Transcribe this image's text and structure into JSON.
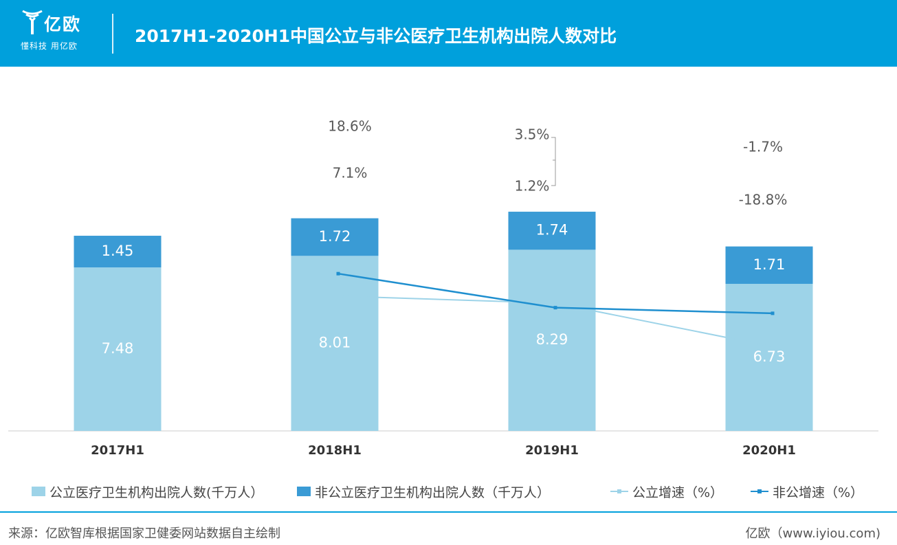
{
  "header": {
    "logo_text": "亿欧",
    "logo_slogan": "懂科技 用亿欧",
    "title": "2017H1-2020H1中国公立与非公医疗卫生机构出院人数对比"
  },
  "colors": {
    "header_bg": "#00a0dc",
    "public_bar": "#9dd3e8",
    "private_bar": "#3a9bd5",
    "public_line": "#9dd3e8",
    "private_line": "#1f8fcf"
  },
  "chart_data": {
    "type": "bar",
    "stacked": true,
    "categories": [
      "2017H1",
      "2018H1",
      "2019H1",
      "2020H1"
    ],
    "series": [
      {
        "name": "公立医疗卫生机构出院人数(千万人）",
        "kind": "bar",
        "values": [
          7.48,
          8.01,
          8.29,
          6.73
        ],
        "value_labels": [
          "7.48",
          "8.01",
          "8.29",
          "6.73"
        ]
      },
      {
        "name": "非公立医疗卫生机构出院人数（千万人）",
        "kind": "bar",
        "values": [
          1.45,
          1.72,
          1.74,
          1.71
        ],
        "value_labels": [
          "1.45",
          "1.72",
          "1.74",
          "1.71"
        ]
      },
      {
        "name": "公立增速（%）",
        "kind": "line",
        "values": [
          null,
          7.1,
          3.5,
          -18.8
        ],
        "value_labels": [
          "",
          "7.1%",
          "3.5%",
          "-18.8%"
        ]
      },
      {
        "name": "非公增速（%）",
        "kind": "line",
        "values": [
          null,
          18.6,
          1.2,
          -1.7
        ],
        "value_labels": [
          "",
          "18.6%",
          "1.2%",
          "-1.7%"
        ]
      }
    ],
    "ylim": [
      0,
      10.5
    ],
    "line_ylim": [
      -70,
      120
    ],
    "legend_position": "bottom",
    "grid": false,
    "xlabel": "",
    "ylabel": ""
  },
  "footer": {
    "source": "来源：亿欧智库根据国家卫健委网站数据自主绘制",
    "brand": "亿欧（www.iyiou.com)"
  }
}
